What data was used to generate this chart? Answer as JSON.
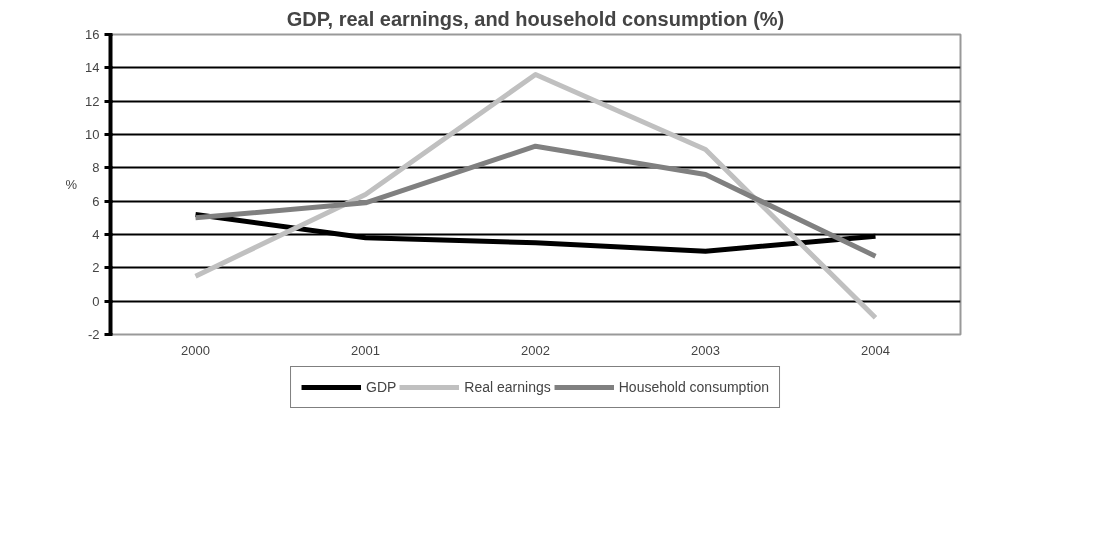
{
  "chart_data": {
    "type": "line",
    "title": "GDP, real earnings, and household consumption (%)",
    "ylabel": "%",
    "categories": [
      "2000",
      "2001",
      "2002",
      "2003",
      "2004"
    ],
    "series": [
      {
        "name": "GDP",
        "color": "#000000",
        "values": [
          5.2,
          3.8,
          3.5,
          3.0,
          3.9
        ]
      },
      {
        "name": "Real earnings",
        "color": "#c0c0c0",
        "values": [
          1.5,
          6.4,
          13.6,
          9.1,
          -1.0
        ]
      },
      {
        "name": "Household consumption",
        "color": "#808080",
        "values": [
          5.0,
          5.9,
          9.3,
          7.6,
          2.7
        ]
      }
    ],
    "ylim": [
      -2,
      16
    ],
    "yticks": [
      -2,
      0,
      2,
      4,
      6,
      8,
      10,
      12,
      14,
      16
    ],
    "grid": "y",
    "legend": "bottom",
    "marker": "none",
    "line_style": "solid"
  }
}
